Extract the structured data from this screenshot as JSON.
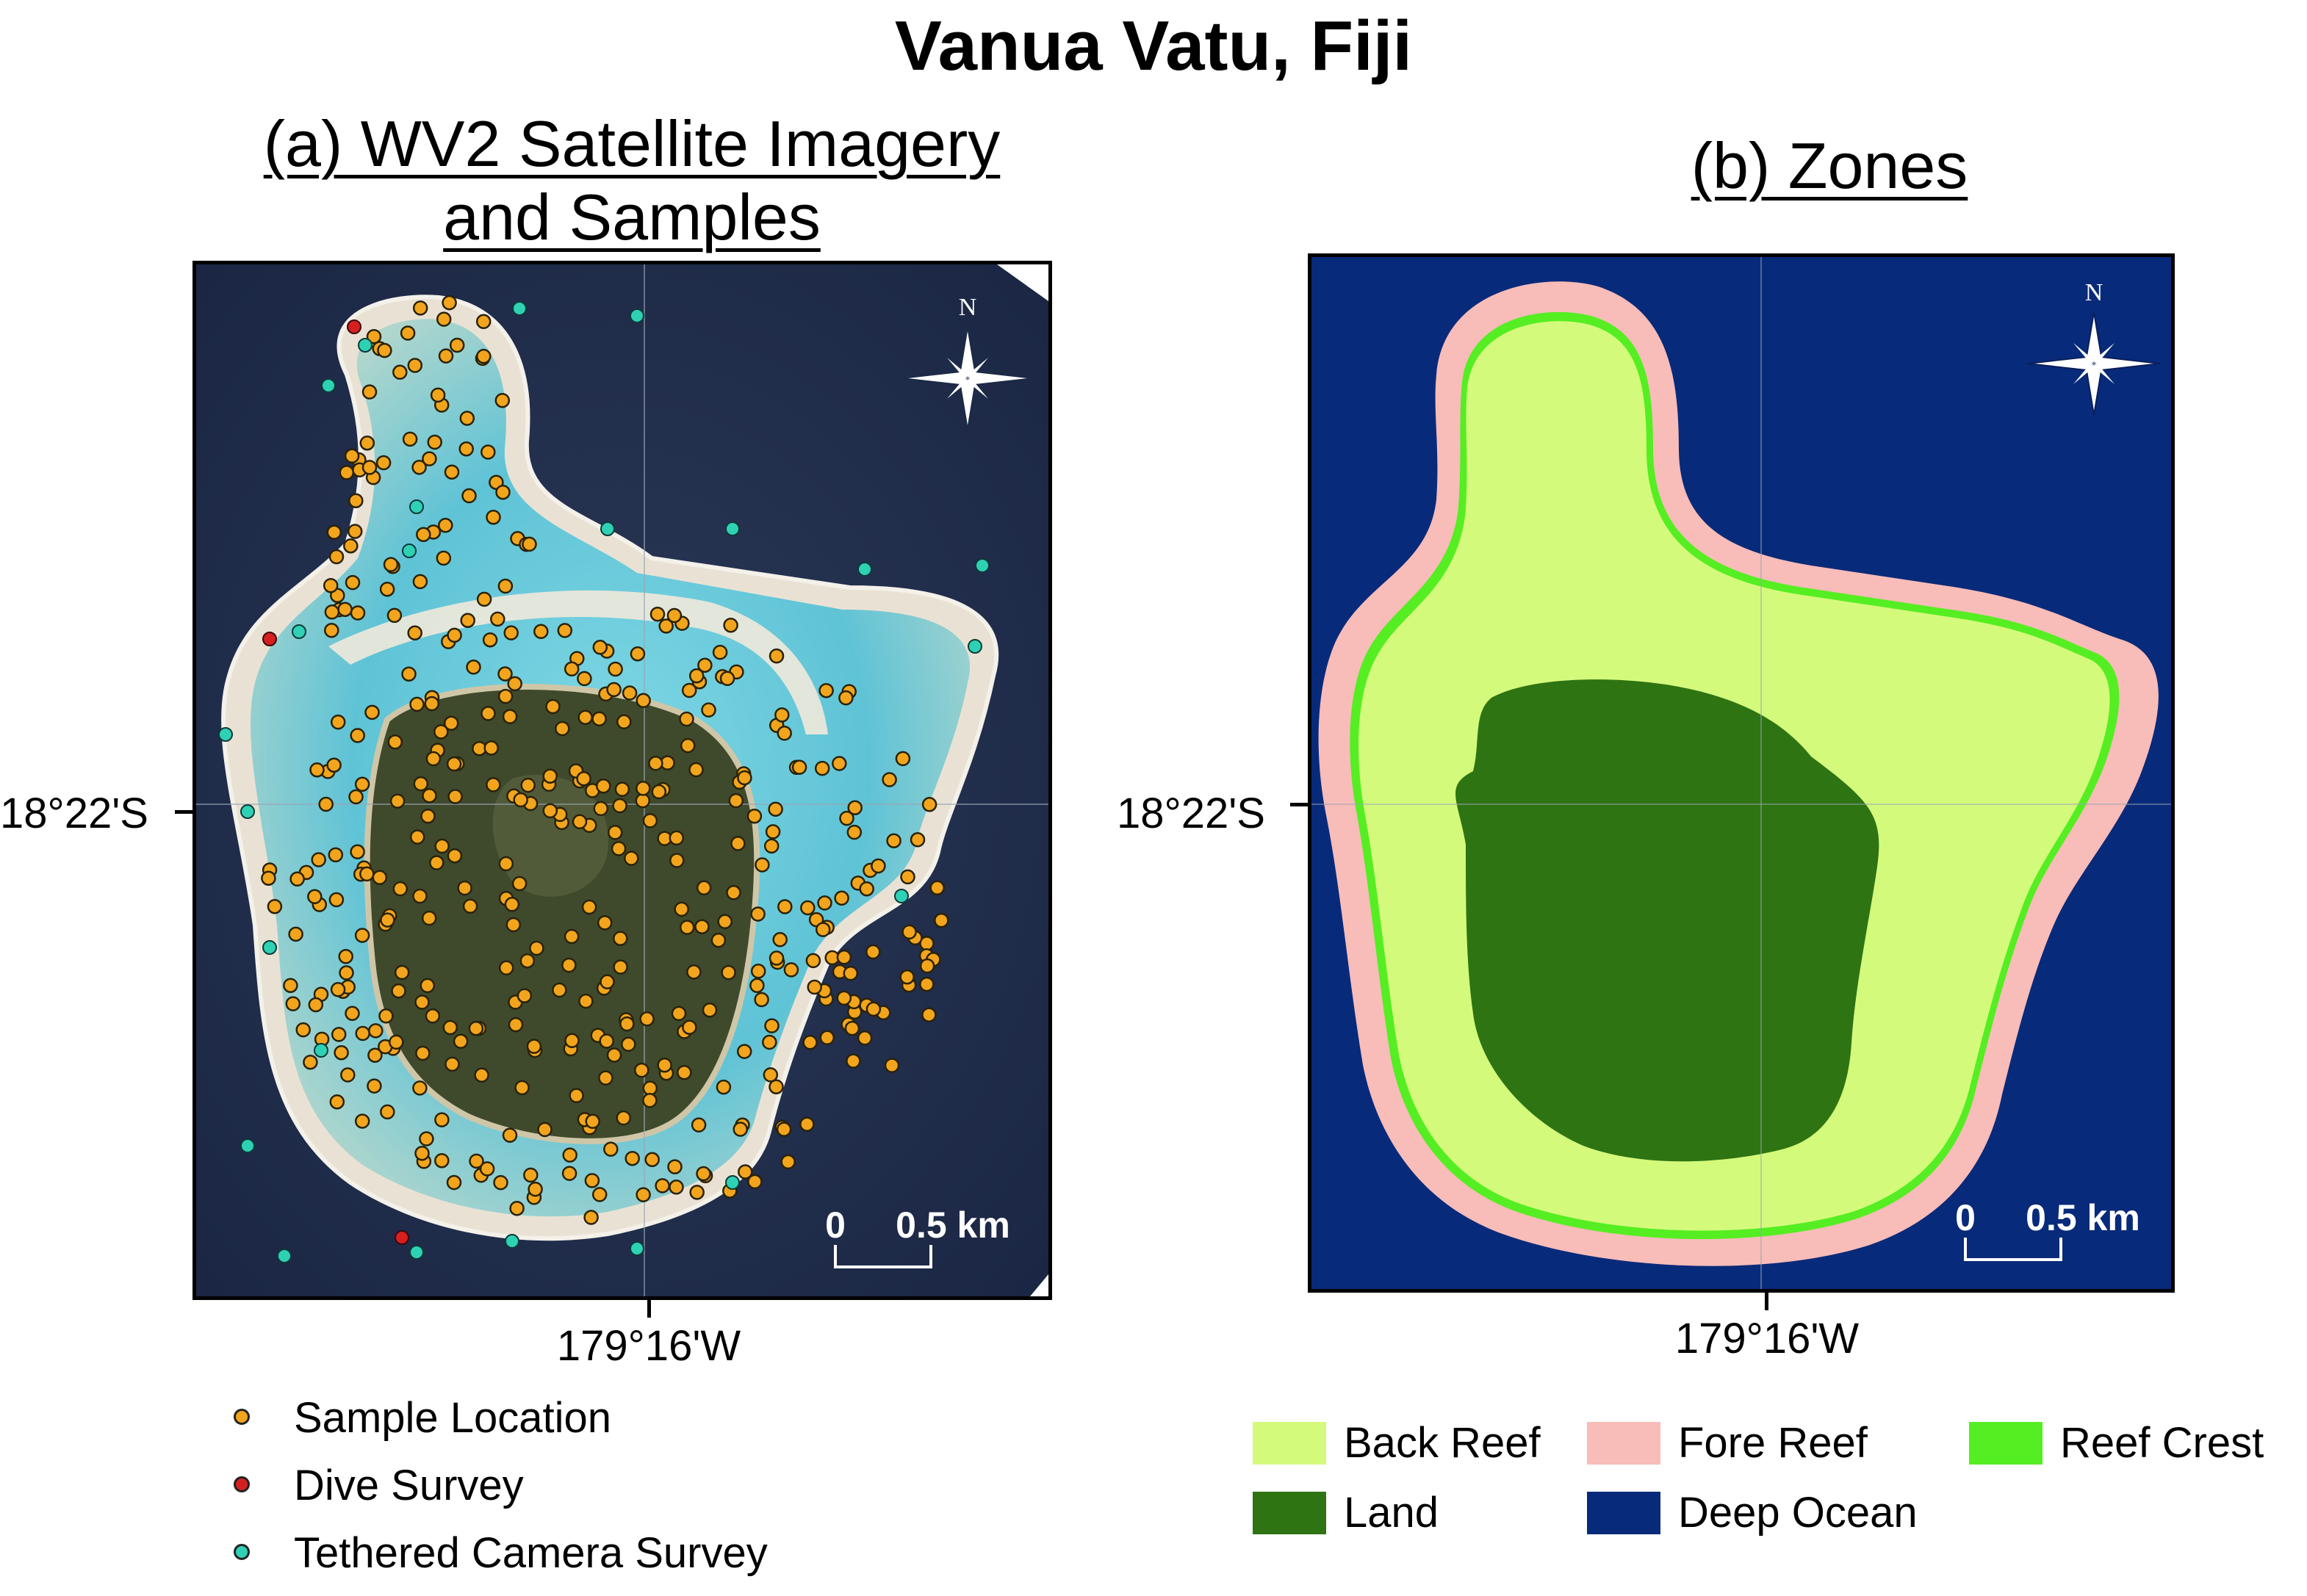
{
  "figure": {
    "title": "Vanua Vatu, Fiji"
  },
  "panel_a": {
    "title": "(a) WV2 Satellite Imagery and Samples",
    "title_line1": "(a) WV2 Satellite Imagery",
    "title_line2": "and Samples",
    "north_label": "N",
    "scale_zero": "0",
    "scale_end": "0.5 km",
    "lat_label": "18°22'S",
    "lon_label": "179°16'W",
    "legend": [
      {
        "label": "Sample Location",
        "color": "#f2a51c"
      },
      {
        "label": "Dive Survey",
        "color": "#d62020"
      },
      {
        "label": "Tethered Camera Survey",
        "color": "#2fd1b5"
      }
    ]
  },
  "panel_b": {
    "title": "(b) Zones",
    "north_label": "N",
    "scale_zero": "0",
    "scale_end": "0.5 km",
    "lat_label": "18°22'S",
    "lon_label": "179°16'W",
    "legend": [
      {
        "label": "Back Reef",
        "color": "#d4fa7c"
      },
      {
        "label": "Fore Reef",
        "color": "#f8bcb9"
      },
      {
        "label": "Reef Crest",
        "color": "#55ee22"
      },
      {
        "label": "Land",
        "color": "#2e7412"
      },
      {
        "label": "Deep Ocean",
        "color": "#082a7a"
      }
    ]
  }
}
